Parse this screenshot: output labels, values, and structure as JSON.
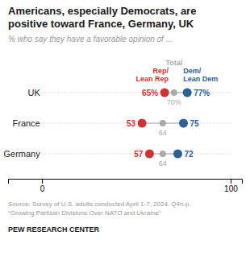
{
  "chart_data": {
    "type": "dot",
    "title": "Americans, especially Democrats, are\npositive toward France, Germany, UK",
    "subtitle": "% who say they have a favorable opinion of ...",
    "categories": [
      "UK",
      "France",
      "Germany"
    ],
    "series": [
      {
        "name": "Rep/\nLean Rep",
        "color": "#cc3333",
        "values": [
          65,
          53,
          57
        ],
        "value_labels": [
          "65%",
          "53",
          "57"
        ]
      },
      {
        "name": "Total",
        "color": "#aaaaaa",
        "values": [
          70,
          64,
          64
        ],
        "value_labels": [
          "70%",
          "64",
          "64"
        ]
      },
      {
        "name": "Dem/\nLean Dem",
        "color": "#2e6094",
        "values": [
          77,
          75,
          72
        ],
        "value_labels": [
          "77%",
          "75",
          "72"
        ]
      }
    ],
    "xlim": [
      -18,
      106
    ],
    "xticks": [
      0,
      100
    ],
    "grid": true,
    "data_labels": true,
    "tick_labels": "x",
    "annotations": [
      "Source: Survey of U.S. adults conducted April 1-7, 2024. Q4n-p.\n“Growing Partisan Divisions Over NATO and Ukraine”",
      "PEW RESEARCH CENTER"
    ]
  }
}
